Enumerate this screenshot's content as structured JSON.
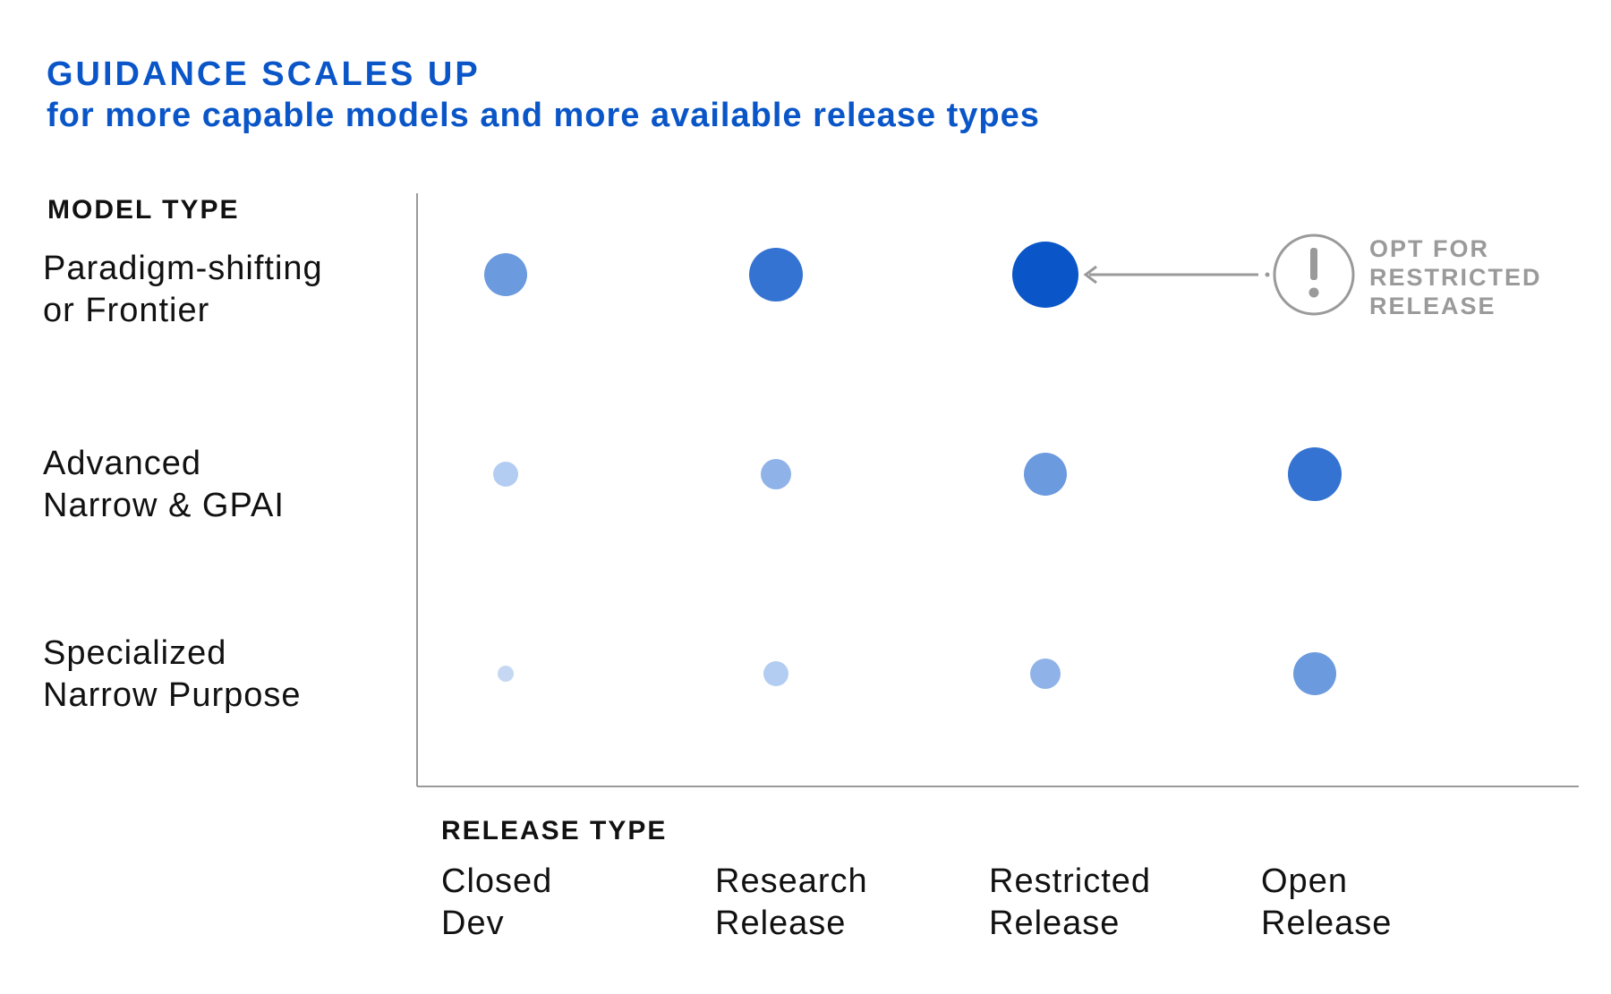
{
  "chart_data": {
    "type": "scatter",
    "title": "GUIDANCE SCALES UP",
    "subtitle": "for more capable models and more available release types",
    "ylabel": "MODEL TYPE",
    "xlabel": "RELEASE TYPE",
    "rows": [
      {
        "label_lines": [
          "Paradigm-shifting",
          "or Frontier"
        ]
      },
      {
        "label_lines": [
          "Advanced",
          "Narrow & GPAI"
        ]
      },
      {
        "label_lines": [
          "Specialized",
          "Narrow Purpose"
        ]
      }
    ],
    "columns": [
      {
        "label_lines": [
          "Closed",
          "Dev"
        ]
      },
      {
        "label_lines": [
          "Research",
          "Release"
        ]
      },
      {
        "label_lines": [
          "Restricted",
          "Release"
        ]
      },
      {
        "label_lines": [
          "Open",
          "Release"
        ]
      }
    ],
    "points": [
      {
        "row": 0,
        "col": 0,
        "level": 3
      },
      {
        "row": 0,
        "col": 1,
        "level": 4
      },
      {
        "row": 0,
        "col": 2,
        "level": 5
      },
      {
        "row": 1,
        "col": 0,
        "level": 1
      },
      {
        "row": 1,
        "col": 1,
        "level": 2
      },
      {
        "row": 1,
        "col": 2,
        "level": 3
      },
      {
        "row": 1,
        "col": 3,
        "level": 4
      },
      {
        "row": 2,
        "col": 0,
        "level": 0
      },
      {
        "row": 2,
        "col": 1,
        "level": 1
      },
      {
        "row": 2,
        "col": 2,
        "level": 2
      },
      {
        "row": 2,
        "col": 3,
        "level": 3
      }
    ],
    "level_colors": [
      "#c5d7f3",
      "#b3cdf2",
      "#8fb3e8",
      "#6b9ade",
      "#3573d2",
      "#0a56c8"
    ],
    "callout": {
      "text_lines": [
        "OPT FOR",
        "RESTRICTED",
        "RELEASE"
      ],
      "icon": "exclamation-circle-icon",
      "points_to": {
        "row": 0,
        "col": 2
      },
      "color": "#9a9a9a"
    },
    "axis_color": "#9a9a9a"
  }
}
